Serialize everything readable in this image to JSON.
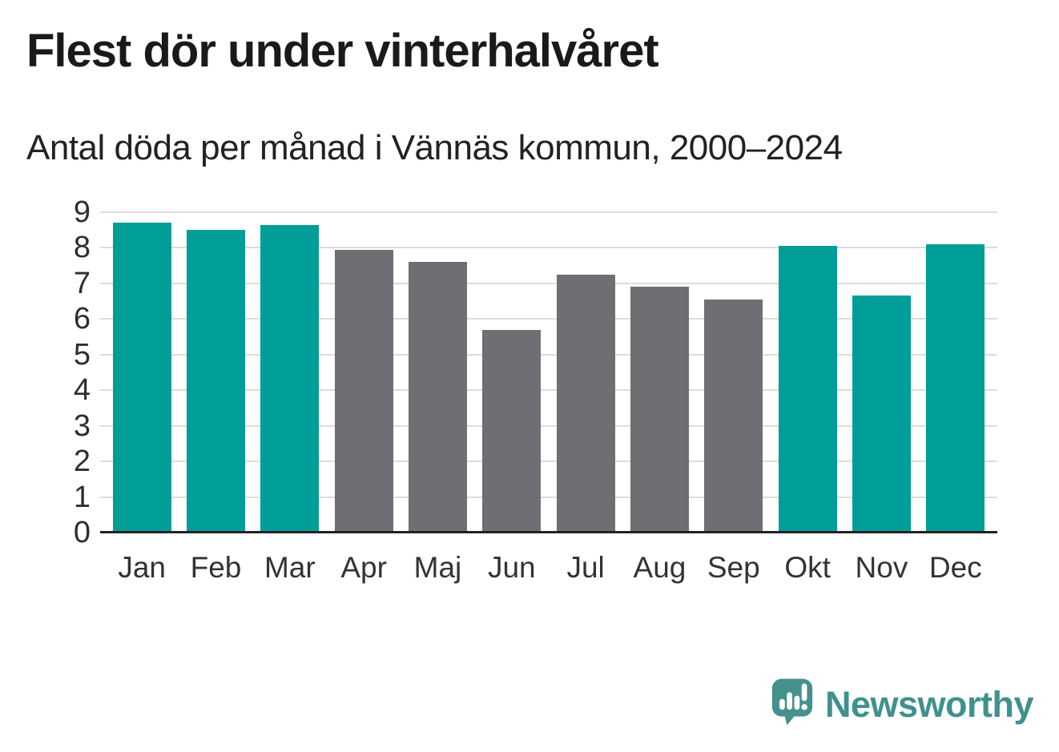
{
  "header": {
    "title": "Flest dör under vinterhalvåret",
    "subtitle": "Antal döda per månad i Vännäs kommun, 2000–2024"
  },
  "chart_data": {
    "type": "bar",
    "title": "Flest dör under vinterhalvåret",
    "subtitle": "Antal döda per månad i Vännäs kommun, 2000–2024",
    "categories": [
      "Jan",
      "Feb",
      "Mar",
      "Apr",
      "Maj",
      "Jun",
      "Jul",
      "Aug",
      "Sep",
      "Okt",
      "Nov",
      "Dec"
    ],
    "values": [
      8.7,
      8.5,
      8.65,
      7.95,
      7.6,
      5.7,
      7.25,
      6.9,
      6.55,
      8.05,
      6.65,
      8.1
    ],
    "bar_groups": [
      "winter",
      "winter",
      "winter",
      "summer",
      "summer",
      "summer",
      "summer",
      "summer",
      "summer",
      "winter",
      "winter",
      "winter"
    ],
    "group_colors": {
      "winter": "#009E96",
      "summer": "#6E6E73"
    },
    "xlabel": "",
    "ylabel": "",
    "ylim": [
      0,
      9
    ],
    "yticks": [
      0,
      1,
      2,
      3,
      4,
      5,
      6,
      7,
      8,
      9
    ],
    "grid": true,
    "gridline_color": "#dcdcdc",
    "baseline_color": "#222222",
    "legend": "none"
  },
  "footer": {
    "brand": "Newsworthy",
    "brand_color": "#3e918e",
    "logo_icon": "bar-chart-speech-bubble-icon"
  }
}
